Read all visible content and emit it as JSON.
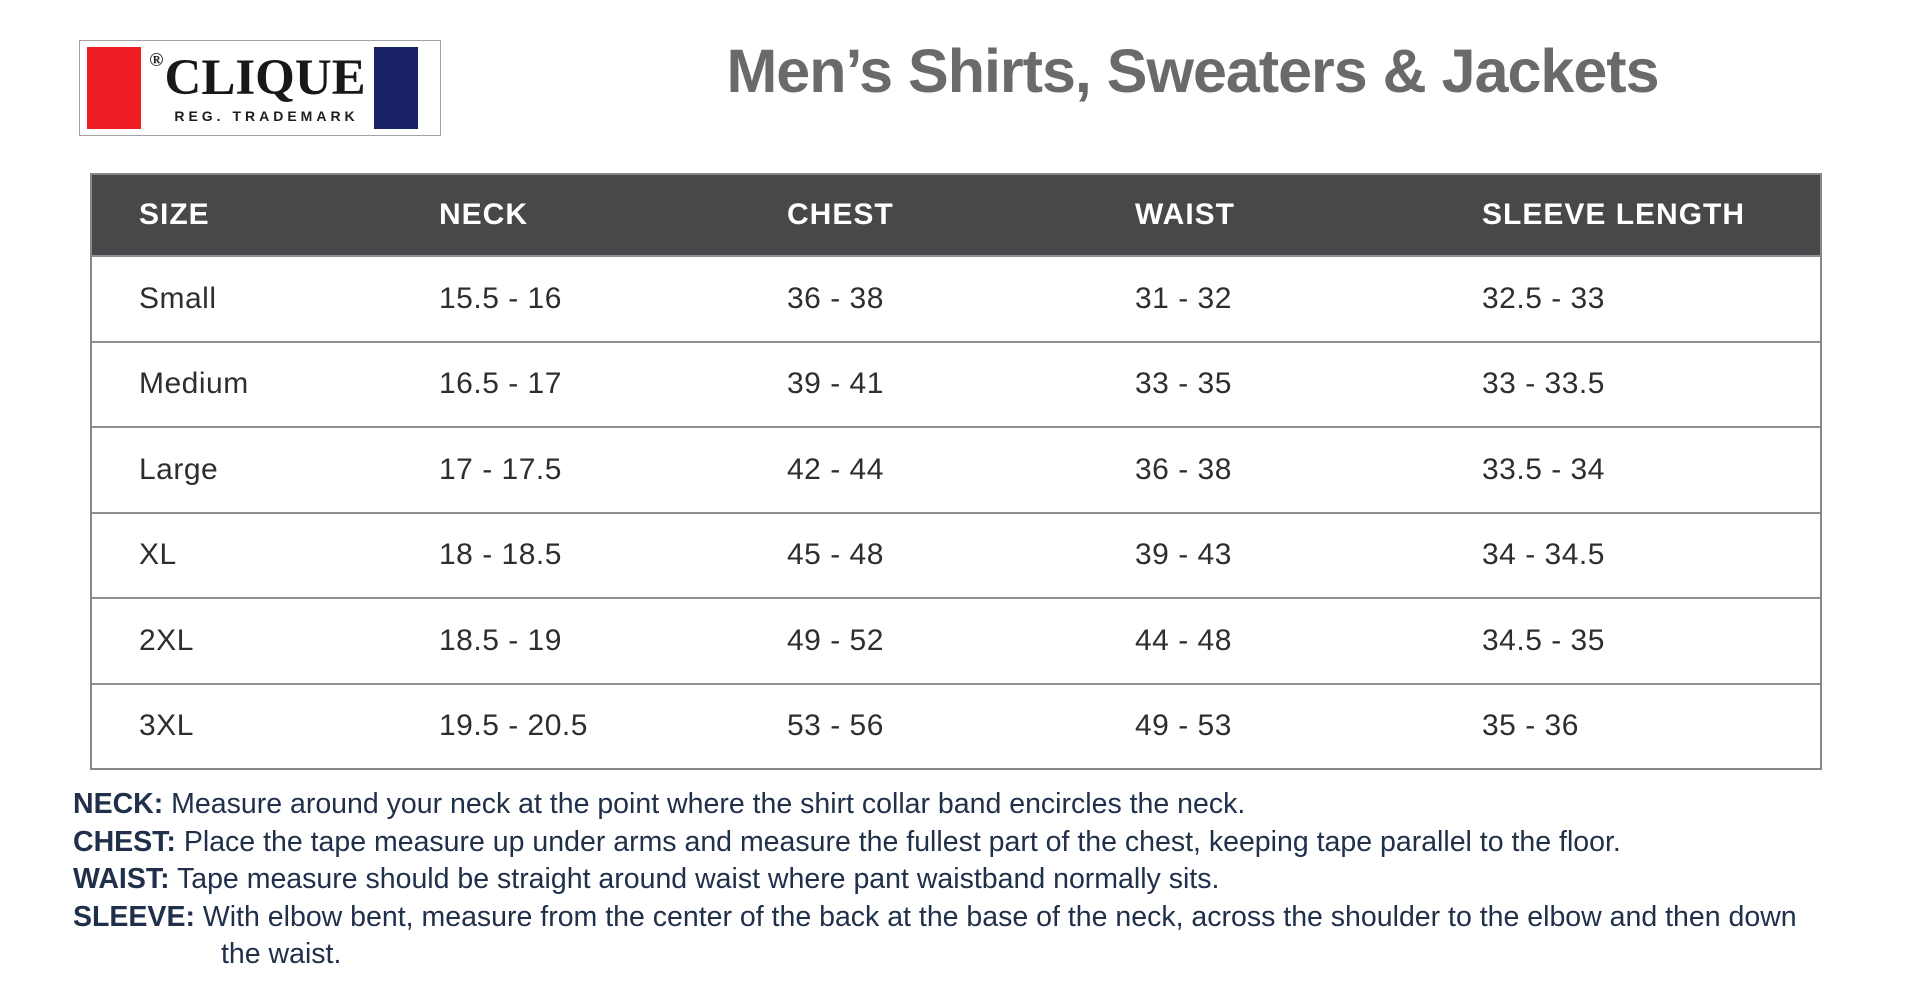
{
  "logo": {
    "registered": "®",
    "brand": "CLIQUE",
    "tagline": "REG. TRADEMARK",
    "colors": {
      "red_block": "#ee1c23",
      "navy_block": "#1a2066"
    }
  },
  "header": {
    "title": "Men’s Shirts, Sweaters & Jackets"
  },
  "table": {
    "headers": [
      "SIZE",
      "NECK",
      "CHEST",
      "WAIST",
      "SLEEVE LENGTH"
    ],
    "rows": [
      [
        "Small",
        "15.5 - 16",
        "36 - 38",
        "31 - 32",
        "32.5 - 33"
      ],
      [
        "Medium",
        "16.5 - 17",
        "39 - 41",
        "33 - 35",
        "33 - 33.5"
      ],
      [
        "Large",
        "17 - 17.5",
        "42 - 44",
        "36 - 38",
        "33.5 - 34"
      ],
      [
        "XL",
        "18 - 18.5",
        "45 - 48",
        "39 - 43",
        "34 - 34.5"
      ],
      [
        "2XL",
        "18.5 - 19",
        "49 - 52",
        "44 - 48",
        "34.5 - 35"
      ],
      [
        "3XL",
        "19.5 - 20.5",
        "53 - 56",
        "49 - 53",
        "35 - 36"
      ]
    ],
    "colors": {
      "header_bg": "#48484a",
      "header_text": "#ffffff",
      "border": "#85878a"
    }
  },
  "notes": [
    {
      "label": "NECK:",
      "text": "Measure around your neck at the point where the shirt collar band encircles the neck."
    },
    {
      "label": "CHEST:",
      "text": "Place the tape measure up under arms and measure the fullest part of the chest, keeping tape parallel to the floor."
    },
    {
      "label": "WAIST:",
      "text": "Tape measure should be straight around waist where pant waistband normally sits."
    },
    {
      "label": "SLEEVE:",
      "text": "With elbow bent, measure from the center of the back at the base of the neck, across the shoulder to the elbow and then down the waist."
    }
  ],
  "colors": {
    "title_text": "#6a6a6d",
    "note_text": "#21304a",
    "body_text": "#2e2e30"
  }
}
